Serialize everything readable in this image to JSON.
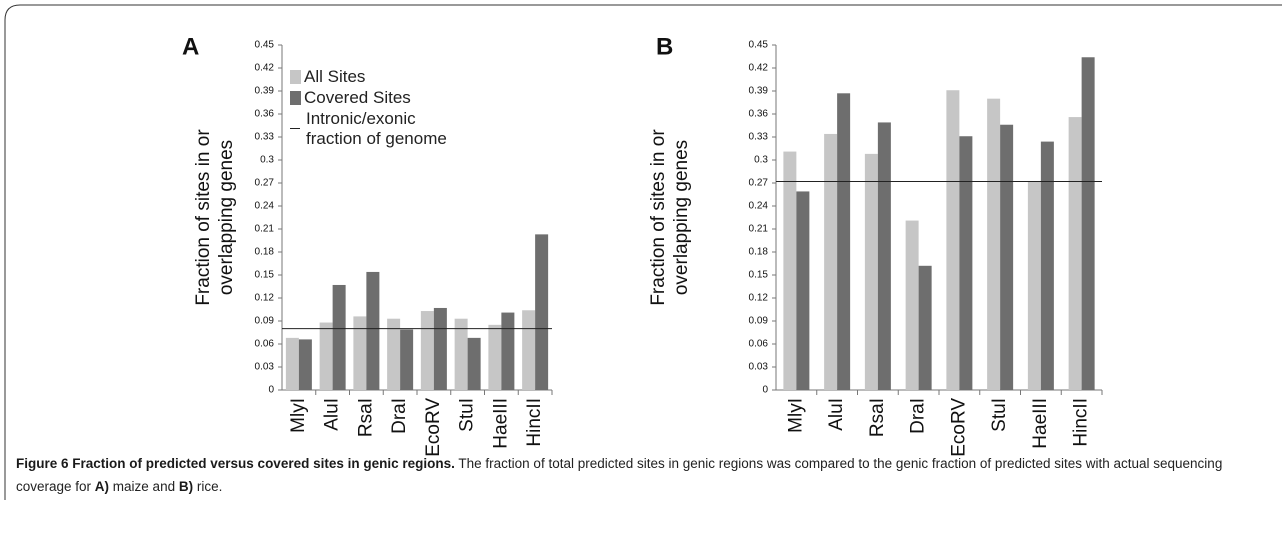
{
  "chart_data": [
    {
      "type": "bar",
      "panel": "A",
      "y_label": [
        "Fraction of sites in or",
        "overlapping genes"
      ],
      "categories": [
        "MlyI",
        "AluI",
        "RsaI",
        "DraI",
        "EcoRV",
        "StuI",
        "HaeIII",
        "HincII"
      ],
      "series": [
        {
          "name": "All Sites",
          "color": "#c6c6c6",
          "values": [
            0.068,
            0.088,
            0.096,
            0.093,
            0.103,
            0.093,
            0.085,
            0.104
          ]
        },
        {
          "name": "Covered Sites",
          "color": "#6e6e6e",
          "values": [
            0.066,
            0.137,
            0.154,
            0.079,
            0.107,
            0.068,
            0.101,
            0.203
          ]
        }
      ],
      "reference_line": {
        "name": "Intronic/exonic fraction of genome",
        "value": 0.08,
        "color": "#222222"
      },
      "legend": true,
      "ylim": [
        0,
        0.45
      ],
      "yticks": [
        0,
        0.03,
        0.06,
        0.09,
        0.12,
        0.15,
        0.18,
        0.21,
        0.24,
        0.27,
        0.3,
        0.33,
        0.36,
        0.39,
        0.42,
        0.45
      ]
    },
    {
      "type": "bar",
      "panel": "B",
      "y_label": [
        "Fraction of sites in or",
        "overlapping genes"
      ],
      "categories": [
        "MlyI",
        "AluI",
        "RsaI",
        "DraI",
        "EcoRV",
        "StuI",
        "HaeIII",
        "HincII"
      ],
      "series": [
        {
          "name": "All Sites",
          "color": "#c6c6c6",
          "values": [
            0.311,
            0.334,
            0.308,
            0.221,
            0.391,
            0.38,
            0.272,
            0.356
          ]
        },
        {
          "name": "Covered Sites",
          "color": "#6e6e6e",
          "values": [
            0.259,
            0.387,
            0.349,
            0.162,
            0.331,
            0.346,
            0.324,
            0.434
          ]
        }
      ],
      "reference_line": {
        "name": "Intronic/exonic fraction of genome",
        "value": 0.272,
        "color": "#222222"
      },
      "legend": false,
      "ylim": [
        0,
        0.45
      ],
      "yticks": [
        0,
        0.03,
        0.06,
        0.09,
        0.12,
        0.15,
        0.18,
        0.21,
        0.24,
        0.27,
        0.3,
        0.33,
        0.36,
        0.39,
        0.42,
        0.45
      ]
    }
  ],
  "caption": [
    {
      "text": "Figure 6 Fraction of predicted versus covered sites in genic regions.",
      "bold": true
    },
    {
      "text": " The fraction of total predicted sites in genic regions was compared to the genic fraction of predicted sites with actual sequencing coverage for ",
      "bold": false
    },
    {
      "text": "A)",
      "bold": true
    },
    {
      "text": " maize and ",
      "bold": false
    },
    {
      "text": "B)",
      "bold": true
    },
    {
      "text": " rice.",
      "bold": false
    }
  ]
}
